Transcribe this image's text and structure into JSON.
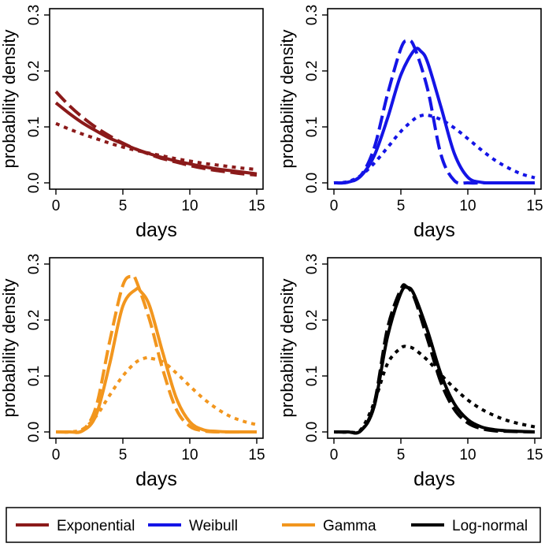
{
  "figure": {
    "legend_entries": [
      {
        "label": "Exponential",
        "color": "#8B1A1A"
      },
      {
        "label": "Weibull",
        "color": "#1414E6"
      },
      {
        "label": "Gamma",
        "color": "#F2961E"
      },
      {
        "label": "Log-normal",
        "color": "#000000"
      }
    ],
    "legend_placement": "bottom"
  },
  "chart_data": [
    {
      "type": "line",
      "panel": "top-left",
      "distribution": "Exponential",
      "color": "#8B1A1A",
      "xlabel": "days",
      "ylabel": "probability density",
      "xlim": [
        0,
        15
      ],
      "ylim": [
        0,
        0.3
      ],
      "xticks": [
        "0",
        "5",
        "10",
        "15"
      ],
      "yticks": [
        "0.0",
        "0.1",
        "0.2",
        "0.3"
      ],
      "series": [
        {
          "name": "solid",
          "style": "solid",
          "x": [
            0,
            1,
            2,
            3,
            4,
            5,
            6,
            7,
            8,
            9,
            10,
            11,
            12,
            13,
            14,
            15
          ],
          "y": [
            0.143,
            0.124,
            0.107,
            0.093,
            0.08,
            0.07,
            0.06,
            0.052,
            0.045,
            0.039,
            0.034,
            0.029,
            0.025,
            0.022,
            0.019,
            0.016
          ]
        },
        {
          "name": "dashed",
          "style": "dashed",
          "x": [
            0,
            1,
            2,
            3,
            4,
            5,
            6,
            7,
            8,
            9,
            10,
            11,
            12,
            13,
            14,
            15
          ],
          "y": [
            0.163,
            0.138,
            0.117,
            0.099,
            0.084,
            0.071,
            0.06,
            0.051,
            0.043,
            0.037,
            0.031,
            0.026,
            0.022,
            0.019,
            0.016,
            0.014
          ]
        },
        {
          "name": "dotted",
          "style": "dotted",
          "x": [
            0,
            1,
            2,
            3,
            4,
            5,
            6,
            7,
            8,
            9,
            10,
            11,
            12,
            13,
            14,
            15
          ],
          "y": [
            0.106,
            0.096,
            0.087,
            0.079,
            0.071,
            0.064,
            0.058,
            0.053,
            0.048,
            0.043,
            0.039,
            0.035,
            0.032,
            0.029,
            0.026,
            0.024
          ]
        }
      ]
    },
    {
      "type": "line",
      "panel": "top-right",
      "distribution": "Weibull",
      "color": "#1414E6",
      "xlabel": "days",
      "ylabel": "probability density",
      "xlim": [
        0,
        15
      ],
      "ylim": [
        0,
        0.3
      ],
      "xticks": [
        "0",
        "5",
        "10",
        "15"
      ],
      "yticks": [
        "0.0",
        "0.1",
        "0.2",
        "0.3"
      ],
      "series": [
        {
          "name": "solid",
          "style": "solid",
          "x": [
            0,
            1,
            2,
            3,
            4,
            5,
            6,
            6.5,
            7,
            8,
            9,
            10,
            11,
            12,
            13,
            15
          ],
          "y": [
            0.0,
            0.001,
            0.012,
            0.048,
            0.115,
            0.193,
            0.237,
            0.235,
            0.215,
            0.135,
            0.052,
            0.01,
            0.001,
            0.0,
            0.0,
            0.0
          ]
        },
        {
          "name": "dashed",
          "style": "dashed",
          "x": [
            0,
            1,
            2,
            3,
            4,
            5,
            5.5,
            6,
            7,
            8,
            9,
            10,
            11,
            12,
            15
          ],
          "y": [
            0.0,
            0.001,
            0.013,
            0.062,
            0.158,
            0.24,
            0.254,
            0.243,
            0.167,
            0.05,
            0.004,
            0.0,
            0.0,
            0.0,
            0.0
          ]
        },
        {
          "name": "dotted",
          "style": "dotted",
          "x": [
            0,
            1,
            2,
            3,
            4,
            5,
            6,
            6.5,
            7,
            8,
            9,
            10,
            11,
            12,
            13,
            14,
            15
          ],
          "y": [
            0.0,
            0.002,
            0.013,
            0.035,
            0.063,
            0.092,
            0.114,
            0.12,
            0.121,
            0.113,
            0.098,
            0.079,
            0.059,
            0.041,
            0.027,
            0.016,
            0.009
          ]
        }
      ]
    },
    {
      "type": "line",
      "panel": "bottom-left",
      "distribution": "Gamma",
      "color": "#F2961E",
      "xlabel": "days",
      "ylabel": "probability density",
      "xlim": [
        0,
        15
      ],
      "ylim": [
        0,
        0.3
      ],
      "xticks": [
        "0",
        "5",
        "10",
        "15"
      ],
      "yticks": [
        "0.0",
        "0.1",
        "0.2",
        "0.3"
      ],
      "series": [
        {
          "name": "solid",
          "style": "solid",
          "x": [
            0,
            1,
            2,
            3,
            4,
            5,
            6,
            6.3,
            7,
            8,
            9,
            10,
            11,
            12,
            13,
            15
          ],
          "y": [
            0.0,
            0.0,
            0.002,
            0.03,
            0.12,
            0.225,
            0.255,
            0.252,
            0.225,
            0.14,
            0.06,
            0.018,
            0.004,
            0.001,
            0.0,
            0.0
          ]
        },
        {
          "name": "dashed",
          "style": "dashed",
          "x": [
            0,
            1,
            2,
            3,
            4,
            5,
            5.7,
            6,
            7,
            8,
            9,
            10,
            11,
            12,
            15
          ],
          "y": [
            0.0,
            0.0,
            0.003,
            0.045,
            0.16,
            0.262,
            0.278,
            0.27,
            0.2,
            0.11,
            0.04,
            0.01,
            0.002,
            0.0,
            0.0
          ]
        },
        {
          "name": "dotted",
          "style": "dotted",
          "x": [
            0,
            1,
            2,
            3,
            4,
            5,
            6,
            6.8,
            7,
            8,
            9,
            10,
            11,
            12,
            13,
            14,
            15
          ],
          "y": [
            0.0,
            0.0,
            0.005,
            0.028,
            0.065,
            0.1,
            0.125,
            0.133,
            0.132,
            0.125,
            0.105,
            0.082,
            0.06,
            0.042,
            0.028,
            0.019,
            0.013
          ]
        }
      ]
    },
    {
      "type": "line",
      "panel": "bottom-right",
      "distribution": "Log-normal",
      "color": "#000000",
      "xlabel": "days",
      "ylabel": "probability density",
      "xlim": [
        0,
        15
      ],
      "ylim": [
        0,
        0.3
      ],
      "xticks": [
        "0",
        "5",
        "10",
        "15"
      ],
      "yticks": [
        "0.0",
        "0.1",
        "0.2",
        "0.3"
      ],
      "series": [
        {
          "name": "solid",
          "style": "solid",
          "x": [
            0,
            1,
            2,
            3,
            4,
            5,
            5.5,
            6,
            7,
            8,
            9,
            10,
            11,
            12,
            13,
            15
          ],
          "y": [
            0.0,
            0.0,
            0.002,
            0.045,
            0.17,
            0.248,
            0.258,
            0.245,
            0.18,
            0.103,
            0.05,
            0.022,
            0.009,
            0.004,
            0.002,
            0.0
          ]
        },
        {
          "name": "dashed",
          "style": "dashed",
          "x": [
            0,
            1,
            2,
            3,
            4,
            5,
            5.4,
            6,
            7,
            8,
            9,
            10,
            11,
            12,
            13,
            15
          ],
          "y": [
            0.0,
            0.0,
            0.002,
            0.05,
            0.185,
            0.255,
            0.26,
            0.24,
            0.165,
            0.088,
            0.04,
            0.016,
            0.006,
            0.002,
            0.001,
            0.0
          ]
        },
        {
          "name": "dotted",
          "style": "dotted",
          "x": [
            0,
            1,
            2,
            3,
            4,
            5,
            5.5,
            6,
            7,
            8,
            9,
            10,
            11,
            12,
            13,
            14,
            15
          ],
          "y": [
            0.0,
            0.0,
            0.004,
            0.052,
            0.122,
            0.15,
            0.152,
            0.148,
            0.128,
            0.102,
            0.078,
            0.057,
            0.041,
            0.029,
            0.02,
            0.014,
            0.009
          ]
        }
      ]
    }
  ]
}
